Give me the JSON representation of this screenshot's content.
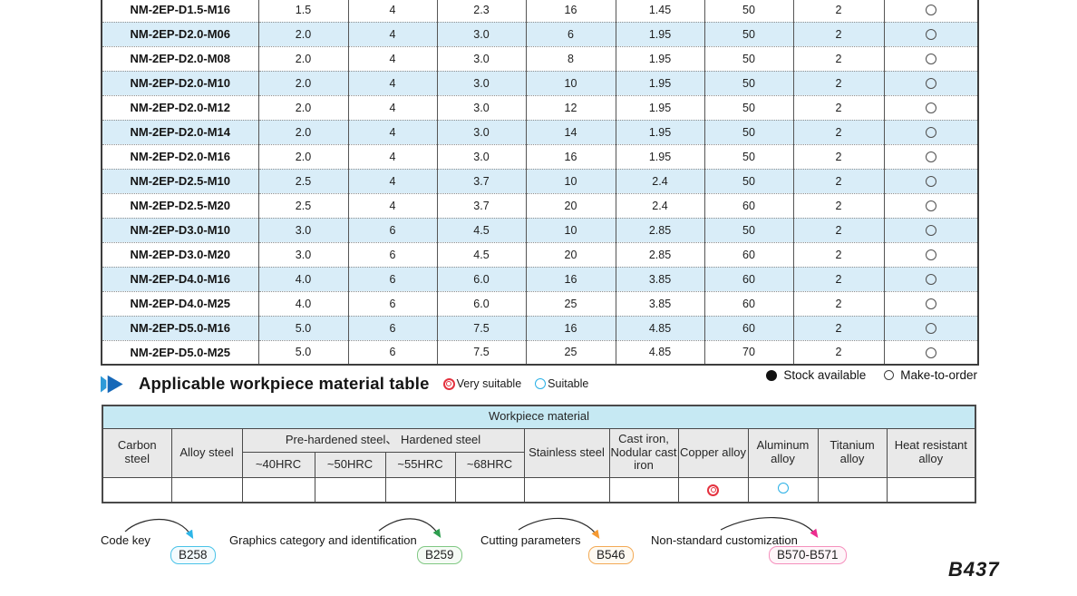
{
  "size_table": {
    "rows": [
      {
        "model": "NM-2EP-D1.5-M16",
        "values": [
          "1.5",
          "4",
          "2.3",
          "16",
          "1.45",
          "50",
          "2"
        ],
        "stock": "make-to-order"
      },
      {
        "model": "NM-2EP-D2.0-M06",
        "values": [
          "2.0",
          "4",
          "3.0",
          "6",
          "1.95",
          "50",
          "2"
        ],
        "stock": "make-to-order"
      },
      {
        "model": "NM-2EP-D2.0-M08",
        "values": [
          "2.0",
          "4",
          "3.0",
          "8",
          "1.95",
          "50",
          "2"
        ],
        "stock": "make-to-order"
      },
      {
        "model": "NM-2EP-D2.0-M10",
        "values": [
          "2.0",
          "4",
          "3.0",
          "10",
          "1.95",
          "50",
          "2"
        ],
        "stock": "make-to-order"
      },
      {
        "model": "NM-2EP-D2.0-M12",
        "values": [
          "2.0",
          "4",
          "3.0",
          "12",
          "1.95",
          "50",
          "2"
        ],
        "stock": "make-to-order"
      },
      {
        "model": "NM-2EP-D2.0-M14",
        "values": [
          "2.0",
          "4",
          "3.0",
          "14",
          "1.95",
          "50",
          "2"
        ],
        "stock": "make-to-order"
      },
      {
        "model": "NM-2EP-D2.0-M16",
        "values": [
          "2.0",
          "4",
          "3.0",
          "16",
          "1.95",
          "50",
          "2"
        ],
        "stock": "make-to-order"
      },
      {
        "model": "NM-2EP-D2.5-M10",
        "values": [
          "2.5",
          "4",
          "3.7",
          "10",
          "2.4",
          "50",
          "2"
        ],
        "stock": "make-to-order"
      },
      {
        "model": "NM-2EP-D2.5-M20",
        "values": [
          "2.5",
          "4",
          "3.7",
          "20",
          "2.4",
          "60",
          "2"
        ],
        "stock": "make-to-order"
      },
      {
        "model": "NM-2EP-D3.0-M10",
        "values": [
          "3.0",
          "6",
          "4.5",
          "10",
          "2.85",
          "50",
          "2"
        ],
        "stock": "make-to-order"
      },
      {
        "model": "NM-2EP-D3.0-M20",
        "values": [
          "3.0",
          "6",
          "4.5",
          "20",
          "2.85",
          "60",
          "2"
        ],
        "stock": "make-to-order"
      },
      {
        "model": "NM-2EP-D4.0-M16",
        "values": [
          "4.0",
          "6",
          "6.0",
          "16",
          "3.85",
          "60",
          "2"
        ],
        "stock": "make-to-order"
      },
      {
        "model": "NM-2EP-D4.0-M25",
        "values": [
          "4.0",
          "6",
          "6.0",
          "25",
          "3.85",
          "60",
          "2"
        ],
        "stock": "make-to-order"
      },
      {
        "model": "NM-2EP-D5.0-M16",
        "values": [
          "5.0",
          "6",
          "7.5",
          "16",
          "4.85",
          "60",
          "2"
        ],
        "stock": "make-to-order"
      },
      {
        "model": "NM-2EP-D5.0-M25",
        "values": [
          "5.0",
          "6",
          "7.5",
          "25",
          "4.85",
          "70",
          "2"
        ],
        "stock": "make-to-order"
      }
    ]
  },
  "stock_legend": {
    "available_label": "Stock available",
    "mto_label": "Make-to-order"
  },
  "section": {
    "title": "Applicable workpiece material table",
    "very_suitable_label": "Very suitable",
    "suitable_label": "Suitable"
  },
  "material_table": {
    "title": "Workpiece material",
    "columns": {
      "carbon": "Carbon steel",
      "alloy": "Alloy steel",
      "prehardened_group": "Pre-hardened steel、 Hardened steel",
      "hrc40": "~40HRC",
      "hrc50": "~50HRC",
      "hrc55": "~55HRC",
      "hrc68": "~68HRC",
      "stainless": "Stainless steel",
      "cast_iron": "Cast iron, Nodular cast iron",
      "copper": "Copper alloy",
      "aluminum": "Aluminum alloy",
      "titanium": "Titanium alloy",
      "heat_resistant": "Heat resistant alloy"
    },
    "ratings": {
      "copper": "very-suitable",
      "aluminum": "suitable"
    }
  },
  "footer": {
    "links": [
      {
        "label": "Code key",
        "page": "B258",
        "color": "#4ac3e8"
      },
      {
        "label": "Graphics category and identification",
        "page": "B259",
        "color": "#80c883"
      },
      {
        "label": "Cutting parameters",
        "page": "B546",
        "color": "#f3aa56"
      },
      {
        "label": "Non-standard customization",
        "page": "B570-B571",
        "color": "#f590bd"
      }
    ],
    "page_number": "B437"
  },
  "colors": {
    "row_stripe": "#d9edf8",
    "material_header": "#c6e9f3",
    "header_gray": "#e9e9e9",
    "very_suitable_red": "#e4323f",
    "suitable_cyan": "#29b0e6",
    "chevron_light_blue": "#2e9ad8",
    "chevron_dark_blue": "#1668b8"
  }
}
